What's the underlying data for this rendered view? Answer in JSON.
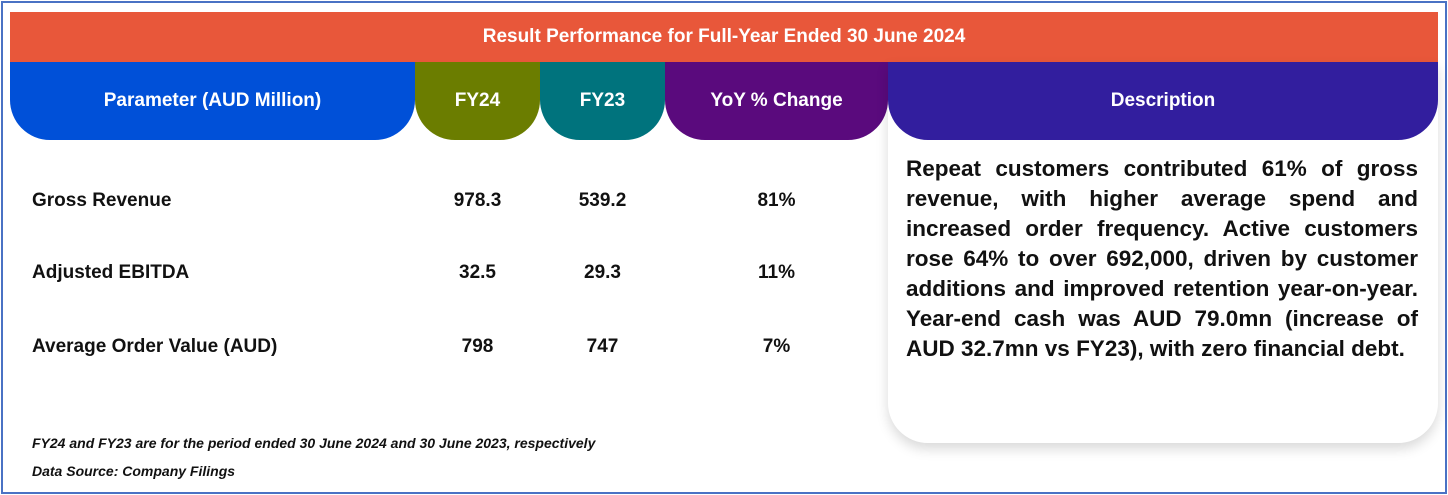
{
  "title": "Result Performance for Full-Year Ended 30 June 2024",
  "headers": [
    "Parameter (AUD Million)",
    "FY24",
    "FY23",
    "YoY % Change",
    "Description"
  ],
  "colors": {
    "title": "#e8573a",
    "parameter": "#0050d8",
    "fy24": "#6b7d00",
    "fy23": "#00737d",
    "yoy": "#5a0a7d",
    "description": "#321e9e"
  },
  "rows": [
    {
      "label": "Gross Revenue",
      "fy24": "978.3",
      "fy23": "539.2",
      "yoy": "81%"
    },
    {
      "label": "Adjusted EBITDA",
      "fy24": "32.5",
      "fy23": "29.3",
      "yoy": "11%"
    },
    {
      "label": "Average Order Value (AUD)",
      "fy24": "798",
      "fy23": "747",
      "yoy": "7%"
    }
  ],
  "description": "Repeat customers contributed 61% of gross revenue, with higher average spend and increased order frequency. Active customers rose 64% to over 692,000, driven by customer additions and improved retention year-on-year. Year-end cash was AUD 79.0mn (increase of AUD 32.7mn vs FY23), with zero financial debt.",
  "notes": [
    "FY24 and FY23 are for the period ended 30 June 2024 and 30 June 2023, respectively",
    "Data Source: Company Filings"
  ]
}
